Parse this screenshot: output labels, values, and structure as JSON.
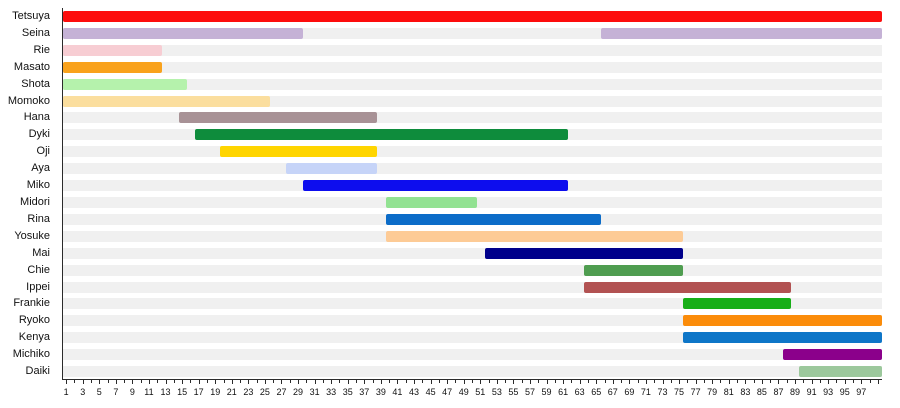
{
  "chart_data": {
    "type": "bar",
    "subtype": "gantt-timeline",
    "orientation": "horizontal",
    "title": "",
    "xlabel": "",
    "ylabel": "",
    "legend": "none",
    "grid": false,
    "x_axis": {
      "min": 0,
      "max": 99,
      "minor_tick_every": 1,
      "tick_labels": [
        1,
        3,
        5,
        7,
        9,
        11,
        13,
        15,
        17,
        19,
        21,
        23,
        25,
        27,
        29,
        31,
        33,
        35,
        37,
        39,
        41,
        43,
        45,
        47,
        49,
        51,
        53,
        55,
        57,
        59,
        61,
        63,
        65,
        67,
        69,
        71,
        73,
        75,
        77,
        79,
        81,
        83,
        85,
        87,
        89,
        91,
        93,
        95,
        97
      ]
    },
    "row_track_color": "#f0f0f0",
    "axis_color": "#2b2b2b",
    "series": [
      {
        "name": "Tetsuya",
        "color": "#fd0d0d",
        "segments": [
          [
            1,
            99
          ]
        ]
      },
      {
        "name": "Seina",
        "color": "#c5b2d6",
        "segments": [
          [
            1,
            29
          ],
          [
            66,
            99
          ]
        ]
      },
      {
        "name": "Rie",
        "color": "#f7cdd3",
        "segments": [
          [
            1,
            12
          ]
        ]
      },
      {
        "name": "Masato",
        "color": "#f9a21c",
        "segments": [
          [
            1,
            12
          ]
        ]
      },
      {
        "name": "Shota",
        "color": "#b5f2ac",
        "segments": [
          [
            1,
            15
          ]
        ]
      },
      {
        "name": "Momoko",
        "color": "#fbde9e",
        "segments": [
          [
            1,
            25
          ]
        ]
      },
      {
        "name": "Hana",
        "color": "#a89296",
        "segments": [
          [
            15,
            38
          ]
        ]
      },
      {
        "name": "Dyki",
        "color": "#0e8c3c",
        "segments": [
          [
            17,
            61
          ]
        ]
      },
      {
        "name": "Oji",
        "color": "#ffd500",
        "segments": [
          [
            20,
            38
          ]
        ]
      },
      {
        "name": "Aya",
        "color": "#c6d4f8",
        "segments": [
          [
            28,
            38
          ]
        ]
      },
      {
        "name": "Miko",
        "color": "#0d0dee",
        "segments": [
          [
            30,
            61
          ]
        ]
      },
      {
        "name": "Midori",
        "color": "#92e292",
        "segments": [
          [
            40,
            50
          ]
        ]
      },
      {
        "name": "Rina",
        "color": "#0c6cc8",
        "segments": [
          [
            40,
            65
          ]
        ]
      },
      {
        "name": "Yosuke",
        "color": "#fdcb96",
        "segments": [
          [
            40,
            75
          ]
        ]
      },
      {
        "name": "Mai",
        "color": "#00008b",
        "segments": [
          [
            52,
            75
          ]
        ]
      },
      {
        "name": "Chie",
        "color": "#4f9d50",
        "segments": [
          [
            64,
            75
          ]
        ]
      },
      {
        "name": "Ippei",
        "color": "#b25252",
        "segments": [
          [
            64,
            88
          ]
        ]
      },
      {
        "name": "Frankie",
        "color": "#17ae17",
        "segments": [
          [
            76,
            88
          ]
        ]
      },
      {
        "name": "Ryoko",
        "color": "#fb8c0a",
        "segments": [
          [
            76,
            99
          ]
        ]
      },
      {
        "name": "Kenya",
        "color": "#0e76c8",
        "segments": [
          [
            76,
            99
          ]
        ]
      },
      {
        "name": "Michiko",
        "color": "#8b008b",
        "segments": [
          [
            88,
            99
          ]
        ]
      },
      {
        "name": "Daiki",
        "color": "#9cc89c",
        "segments": [
          [
            90,
            99
          ]
        ]
      }
    ]
  }
}
